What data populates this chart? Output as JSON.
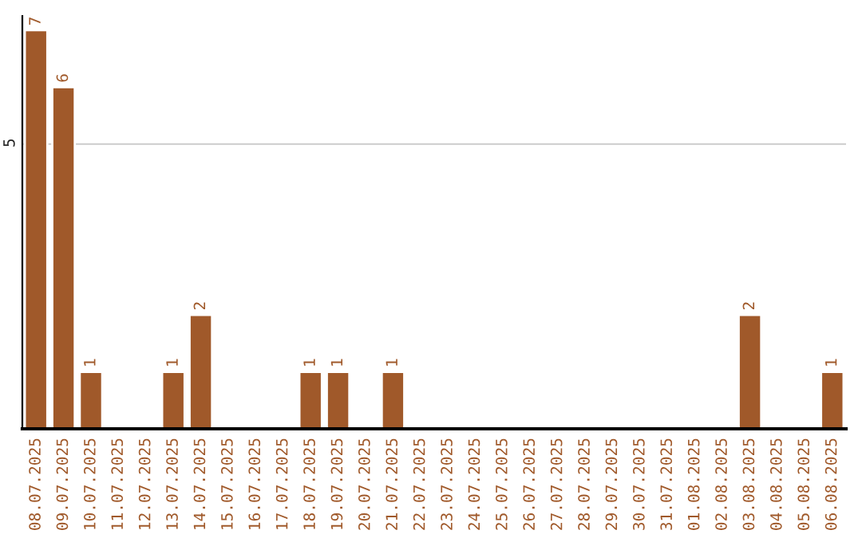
{
  "chart_data": {
    "type": "bar",
    "categories": [
      "08.07.2025",
      "09.07.2025",
      "10.07.2025",
      "11.07.2025",
      "12.07.2025",
      "13.07.2025",
      "14.07.2025",
      "15.07.2025",
      "16.07.2025",
      "17.07.2025",
      "18.07.2025",
      "19.07.2025",
      "20.07.2025",
      "21.07.2025",
      "22.07.2025",
      "23.07.2025",
      "24.07.2025",
      "25.07.2025",
      "26.07.2025",
      "27.07.2025",
      "28.07.2025",
      "29.07.2025",
      "30.07.2025",
      "31.07.2025",
      "01.08.2025",
      "02.08.2025",
      "03.08.2025",
      "04.08.2025",
      "05.08.2025",
      "06.08.2025"
    ],
    "values": [
      7,
      6,
      1,
      0,
      0,
      1,
      2,
      0,
      0,
      0,
      1,
      1,
      0,
      1,
      0,
      0,
      0,
      0,
      0,
      0,
      0,
      0,
      0,
      0,
      0,
      0,
      2,
      0,
      0,
      1
    ],
    "value_labels": [
      "7",
      "6",
      "1",
      null,
      null,
      "1",
      "2",
      null,
      null,
      null,
      "1",
      "1",
      null,
      "1",
      null,
      null,
      null,
      null,
      null,
      null,
      null,
      null,
      null,
      null,
      null,
      null,
      "2",
      null,
      null,
      "1"
    ],
    "color": "#a0592a",
    "ylim": [
      0,
      7.25
    ],
    "yticks": [
      5
    ],
    "grid": "y"
  }
}
